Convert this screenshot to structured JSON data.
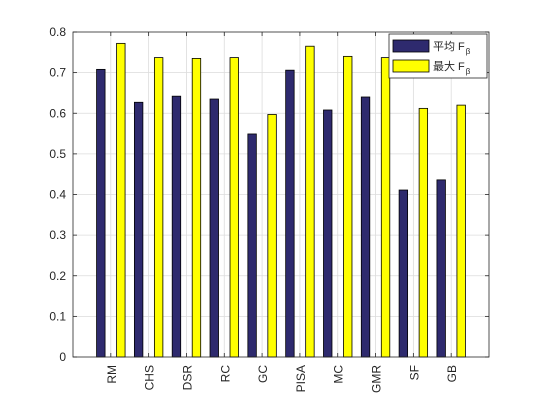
{
  "chart_data": {
    "type": "bar",
    "categories": [
      "RM",
      "CHS",
      "DSR",
      "RC",
      "GC",
      "PISA",
      "MC",
      "GMR",
      "SF",
      "GB"
    ],
    "series": [
      {
        "name": "平均 F",
        "name_subscript": "β",
        "color": "#2e2a6e",
        "values": [
          0.708,
          0.627,
          0.642,
          0.635,
          0.549,
          0.706,
          0.608,
          0.64,
          0.411,
          0.436
        ]
      },
      {
        "name": "最大 F",
        "name_subscript": "β",
        "color": "#ffff00",
        "values": [
          0.772,
          0.737,
          0.735,
          0.737,
          0.597,
          0.765,
          0.74,
          0.737,
          0.612,
          0.62
        ]
      }
    ],
    "yticks": [
      "0",
      "0.1",
      "0.2",
      "0.3",
      "0.4",
      "0.5",
      "0.6",
      "0.7",
      "0.8"
    ],
    "ylim": [
      0,
      0.8
    ],
    "title": "",
    "xlabel": "",
    "ylabel": "",
    "grid": "on",
    "legend_position": "top-right",
    "x_tick_rotation": "vertical"
  }
}
